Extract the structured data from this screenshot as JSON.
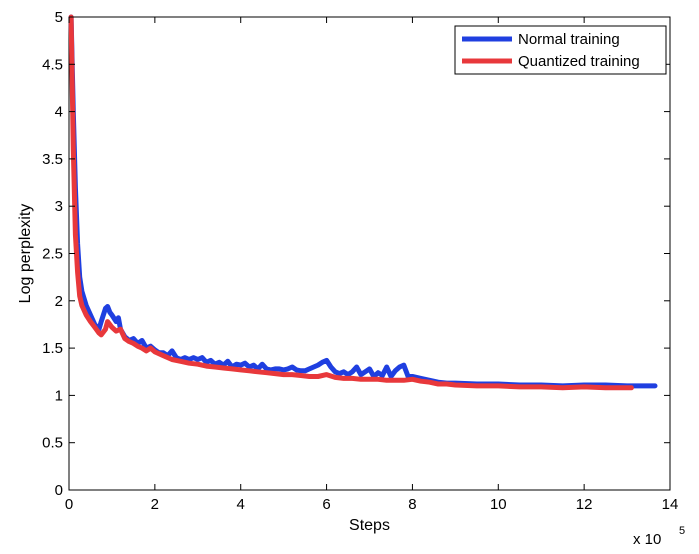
{
  "chart_data": {
    "type": "line",
    "xlabel": "Steps",
    "ylabel": "Log perplexity",
    "x_multiplier_label": "x 10",
    "x_multiplier_exp": "5",
    "xlim": [
      0,
      14
    ],
    "ylim": [
      0,
      5
    ],
    "x_ticks": [
      "0",
      "2",
      "4",
      "6",
      "8",
      "10",
      "12",
      "14"
    ],
    "y_ticks": [
      "0",
      "0.5",
      "1",
      "1.5",
      "2",
      "2.5",
      "3",
      "3.5",
      "4",
      "4.5",
      "5"
    ],
    "x_tick_values": [
      0,
      2,
      4,
      6,
      8,
      10,
      12,
      14
    ],
    "y_tick_values": [
      0,
      0.5,
      1,
      1.5,
      2,
      2.5,
      3,
      3.5,
      4,
      4.5,
      5
    ],
    "grid": false,
    "legend_position": "top-right",
    "series": [
      {
        "name": "Normal training",
        "color": "#1f3fe0",
        "x": [
          0.05,
          0.1,
          0.15,
          0.2,
          0.25,
          0.3,
          0.4,
          0.5,
          0.6,
          0.7,
          0.75,
          0.85,
          0.9,
          0.95,
          1.0,
          1.1,
          1.15,
          1.2,
          1.3,
          1.4,
          1.5,
          1.6,
          1.7,
          1.8,
          1.9,
          2.0,
          2.1,
          2.2,
          2.3,
          2.4,
          2.5,
          2.6,
          2.7,
          2.8,
          2.9,
          3.0,
          3.1,
          3.2,
          3.3,
          3.4,
          3.5,
          3.6,
          3.7,
          3.8,
          3.9,
          4.0,
          4.1,
          4.2,
          4.3,
          4.4,
          4.5,
          4.6,
          4.7,
          4.8,
          4.9,
          5.0,
          5.1,
          5.2,
          5.3,
          5.4,
          5.5,
          5.6,
          5.7,
          5.8,
          5.9,
          6.0,
          6.1,
          6.2,
          6.3,
          6.4,
          6.5,
          6.6,
          6.7,
          6.8,
          6.9,
          7.0,
          7.1,
          7.2,
          7.3,
          7.4,
          7.5,
          7.6,
          7.7,
          7.8,
          7.9,
          8.0,
          8.2,
          8.4,
          8.6,
          8.8,
          9.0,
          9.5,
          10.0,
          10.5,
          11.0,
          11.5,
          12.0,
          12.5,
          13.0,
          13.5,
          13.65
        ],
        "y": [
          5.0,
          4.0,
          3.2,
          2.6,
          2.25,
          2.1,
          1.95,
          1.85,
          1.75,
          1.7,
          1.78,
          1.92,
          1.94,
          1.88,
          1.85,
          1.78,
          1.82,
          1.7,
          1.62,
          1.58,
          1.6,
          1.55,
          1.58,
          1.5,
          1.52,
          1.48,
          1.45,
          1.45,
          1.42,
          1.47,
          1.4,
          1.38,
          1.4,
          1.38,
          1.4,
          1.38,
          1.4,
          1.35,
          1.37,
          1.33,
          1.35,
          1.32,
          1.36,
          1.3,
          1.33,
          1.32,
          1.34,
          1.3,
          1.32,
          1.28,
          1.33,
          1.28,
          1.27,
          1.28,
          1.28,
          1.27,
          1.28,
          1.3,
          1.27,
          1.26,
          1.26,
          1.28,
          1.3,
          1.32,
          1.35,
          1.37,
          1.3,
          1.25,
          1.23,
          1.25,
          1.22,
          1.25,
          1.3,
          1.22,
          1.25,
          1.28,
          1.2,
          1.24,
          1.21,
          1.3,
          1.2,
          1.26,
          1.3,
          1.32,
          1.2,
          1.2,
          1.18,
          1.16,
          1.14,
          1.13,
          1.13,
          1.12,
          1.12,
          1.11,
          1.11,
          1.1,
          1.11,
          1.11,
          1.1,
          1.1,
          1.1
        ]
      },
      {
        "name": "Quantized training",
        "color": "#e8383b",
        "x": [
          0.05,
          0.1,
          0.15,
          0.2,
          0.25,
          0.3,
          0.4,
          0.5,
          0.6,
          0.7,
          0.75,
          0.85,
          0.9,
          0.95,
          1.0,
          1.1,
          1.2,
          1.3,
          1.4,
          1.5,
          1.6,
          1.7,
          1.8,
          1.9,
          2.0,
          2.2,
          2.4,
          2.6,
          2.8,
          3.0,
          3.2,
          3.4,
          3.6,
          3.8,
          4.0,
          4.2,
          4.4,
          4.6,
          4.8,
          5.0,
          5.2,
          5.4,
          5.6,
          5.8,
          6.0,
          6.2,
          6.4,
          6.6,
          6.8,
          7.0,
          7.2,
          7.4,
          7.6,
          7.8,
          8.0,
          8.2,
          8.4,
          8.6,
          8.8,
          9.0,
          9.5,
          10.0,
          10.5,
          11.0,
          11.5,
          12.0,
          12.5,
          13.0,
          13.1
        ],
        "y": [
          5.0,
          3.6,
          2.7,
          2.3,
          2.05,
          1.95,
          1.85,
          1.78,
          1.72,
          1.66,
          1.64,
          1.7,
          1.78,
          1.75,
          1.72,
          1.68,
          1.7,
          1.6,
          1.57,
          1.55,
          1.52,
          1.5,
          1.47,
          1.5,
          1.46,
          1.42,
          1.38,
          1.36,
          1.34,
          1.33,
          1.31,
          1.3,
          1.29,
          1.28,
          1.27,
          1.26,
          1.25,
          1.24,
          1.23,
          1.22,
          1.22,
          1.21,
          1.2,
          1.2,
          1.22,
          1.19,
          1.18,
          1.18,
          1.17,
          1.17,
          1.17,
          1.16,
          1.16,
          1.16,
          1.17,
          1.15,
          1.14,
          1.12,
          1.12,
          1.11,
          1.1,
          1.1,
          1.09,
          1.09,
          1.08,
          1.09,
          1.08,
          1.08,
          1.08
        ]
      }
    ]
  }
}
